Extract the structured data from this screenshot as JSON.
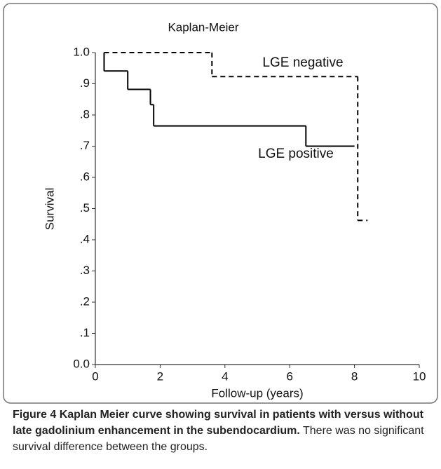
{
  "chart_data": {
    "type": "step",
    "title": "Kaplan-Meier",
    "xlabel": "Follow-up (years)",
    "ylabel": "Survival",
    "xlim": [
      0,
      10
    ],
    "xticks": [
      0,
      2,
      4,
      6,
      8,
      10
    ],
    "ylim": [
      0,
      1.0
    ],
    "yticks": [
      {
        "value": 0,
        "label": "0.0"
      },
      {
        "value": 0.1,
        "label": ".1"
      },
      {
        "value": 0.2,
        "label": ".2"
      },
      {
        "value": 0.3,
        "label": ".3"
      },
      {
        "value": 0.4,
        "label": ".4"
      },
      {
        "value": 0.5,
        "label": ".5"
      },
      {
        "value": 0.6,
        "label": ".6"
      },
      {
        "value": 0.7,
        "label": ".7"
      },
      {
        "value": 0.8,
        "label": ".8"
      },
      {
        "value": 0.9,
        "label": ".9"
      },
      {
        "value": 1.0,
        "label": "1.0"
      }
    ],
    "series": [
      {
        "name": "LGE negative",
        "color": "#000000",
        "dash": true,
        "x": [
          0.27,
          3.6,
          8.1,
          8.4
        ],
        "values": [
          1.0,
          0.923,
          0.462,
          0.462
        ]
      },
      {
        "name": "LGE positive",
        "color": "#000000",
        "dash": false,
        "x": [
          0.27,
          0.27,
          1.0,
          1.7,
          1.8,
          6.5,
          8.0
        ],
        "values": [
          1.0,
          0.941,
          0.882,
          0.833,
          0.765,
          0.7,
          0.7
        ]
      }
    ]
  },
  "caption": {
    "label": "Figure 4",
    "bold_text": "Kaplan Meier curve showing survival in patients with versus without late gadolinium enhancement in the subendocardium.",
    "text": "There was no significant survival difference between the groups."
  }
}
